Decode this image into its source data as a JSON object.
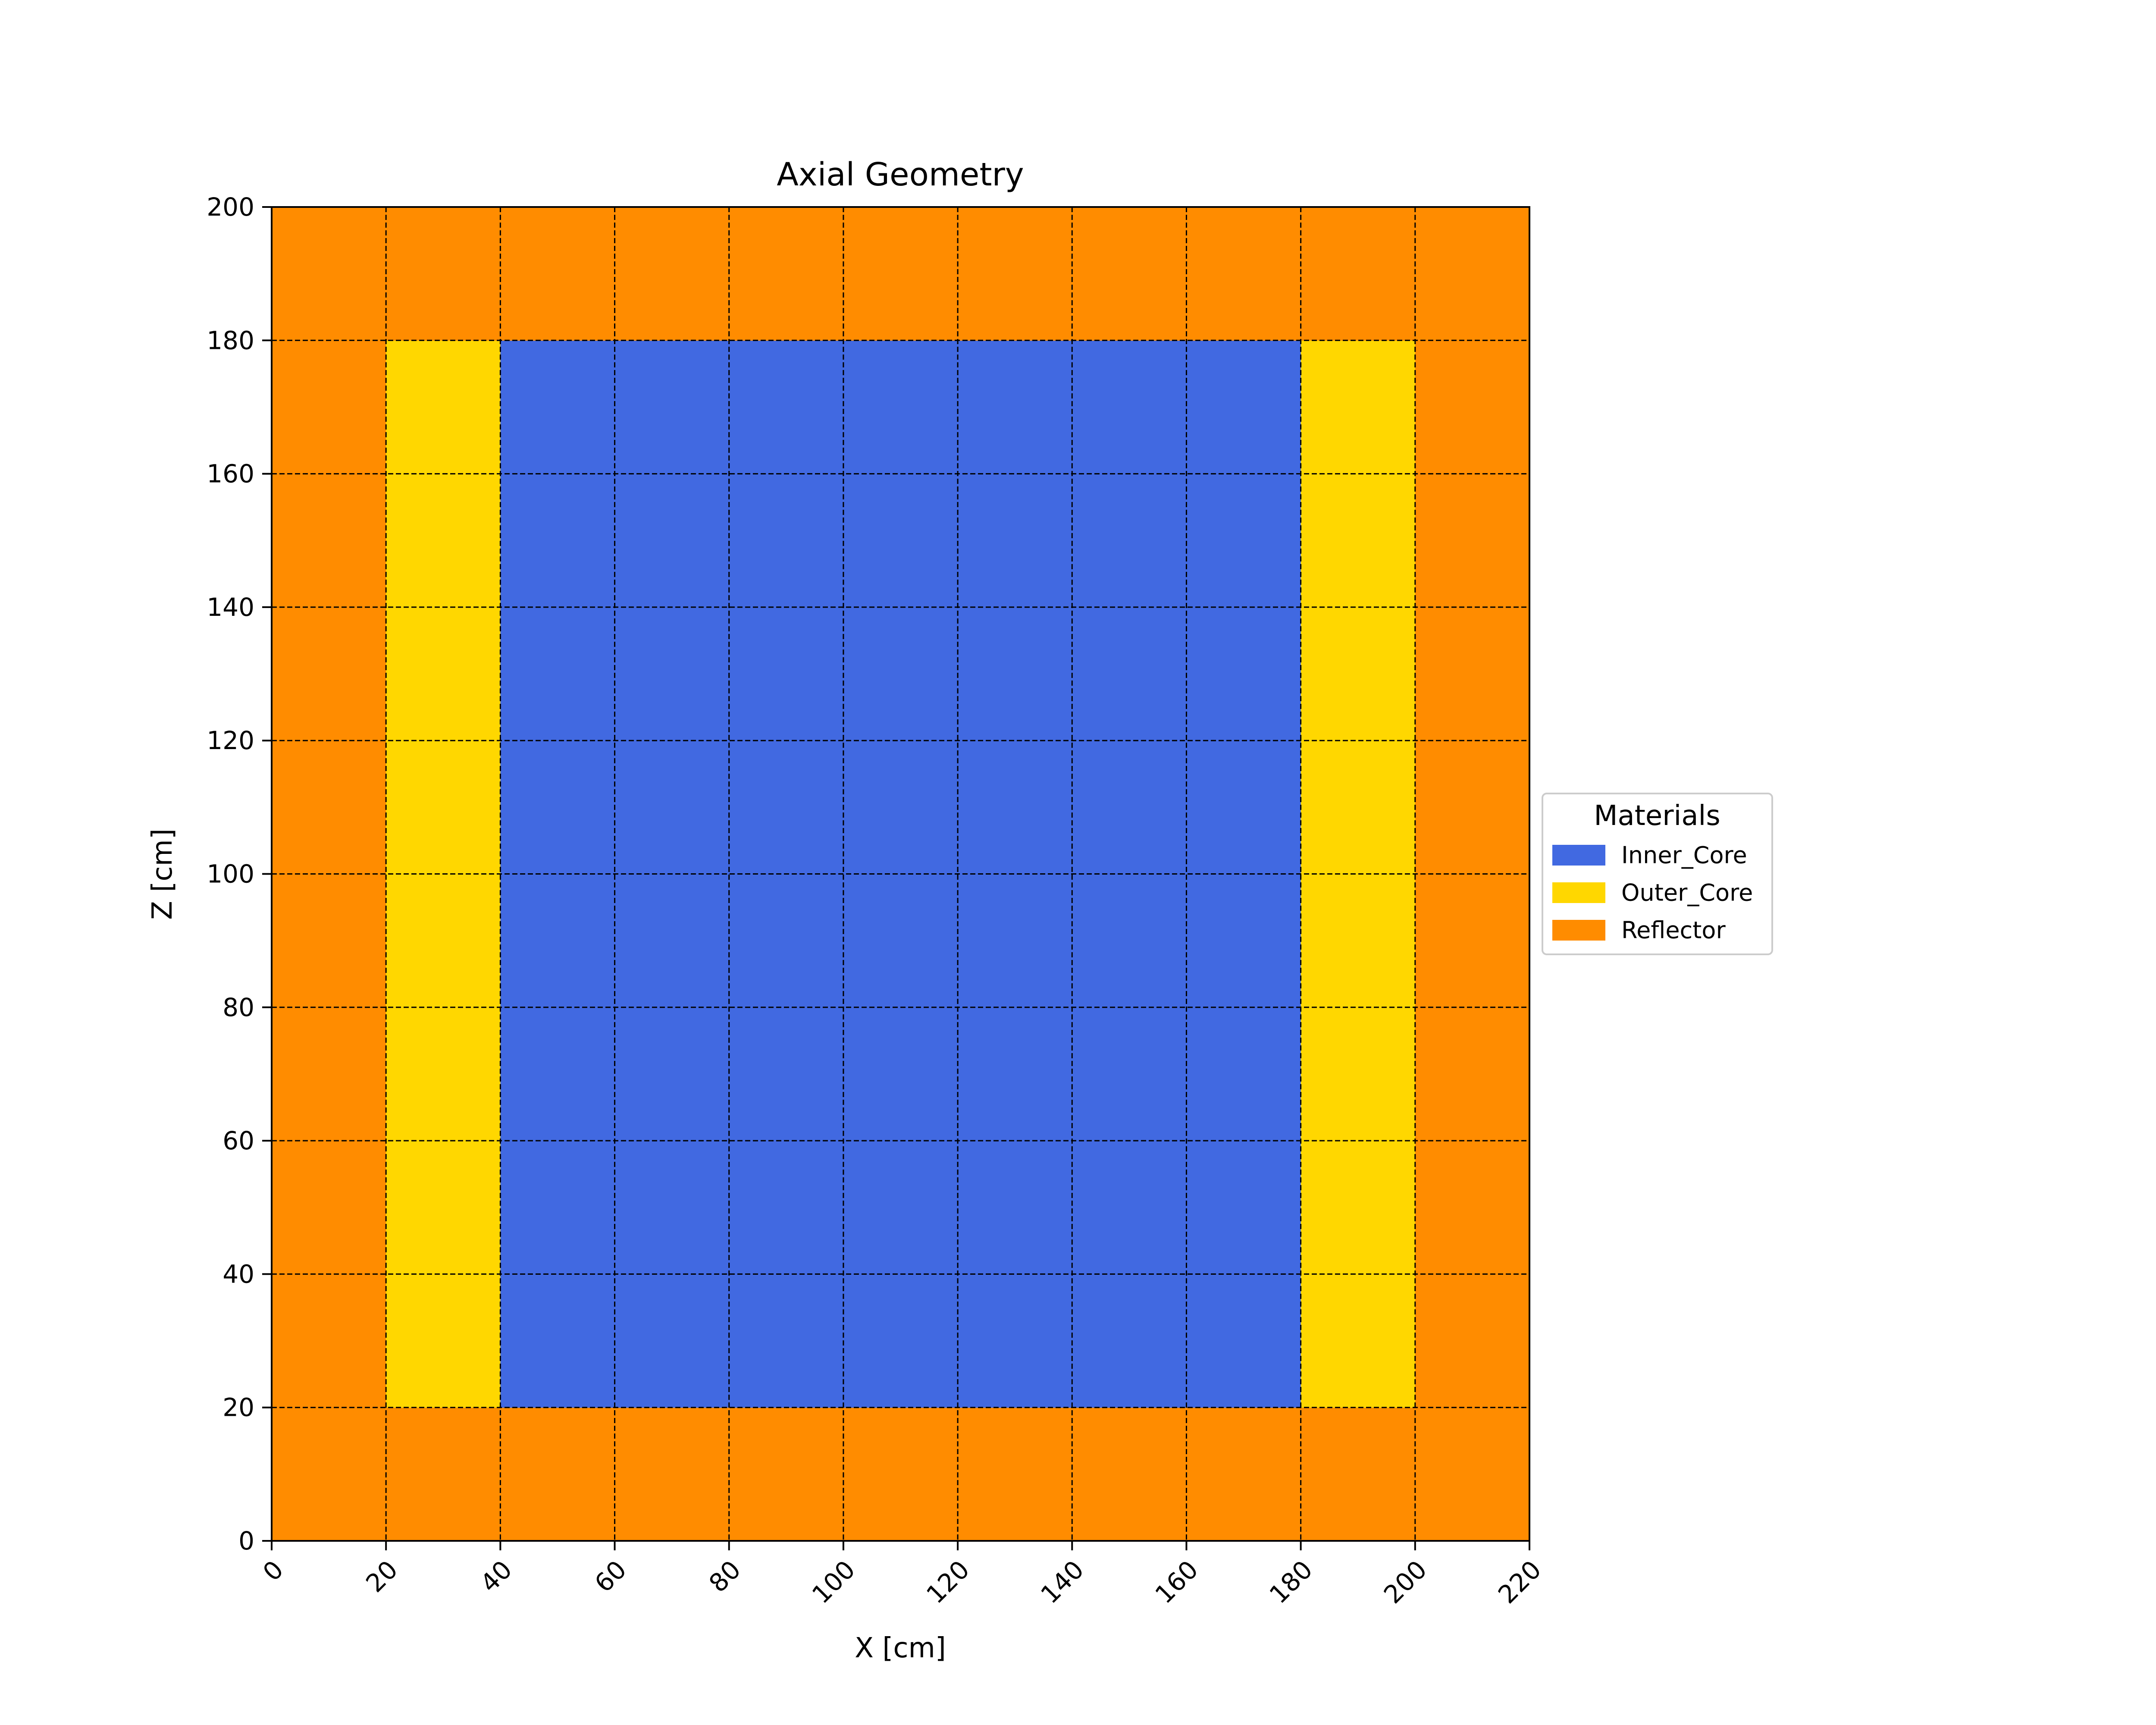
{
  "chart_data": {
    "type": "heatmap",
    "title": "Axial Geometry",
    "xlabel": "X [cm]",
    "ylabel": "Z [cm]",
    "xlim": [
      0,
      220
    ],
    "ylim": [
      0,
      200
    ],
    "x_edges": [
      0,
      20,
      40,
      60,
      80,
      100,
      120,
      140,
      160,
      180,
      200,
      220
    ],
    "y_edges": [
      0,
      20,
      40,
      60,
      80,
      100,
      120,
      140,
      160,
      180,
      200
    ],
    "x_ticks": [
      "0",
      "20",
      "40",
      "60",
      "80",
      "100",
      "120",
      "140",
      "160",
      "180",
      "200",
      "220"
    ],
    "y_ticks": [
      "0",
      "20",
      "40",
      "60",
      "80",
      "100",
      "120",
      "140",
      "160",
      "180",
      "200"
    ],
    "grid": true,
    "legend": {
      "title": "Materials",
      "placement": "center-right-outside",
      "entries": [
        {
          "name": "Inner_Core",
          "color": "#4169e1"
        },
        {
          "name": "Outer_Core",
          "color": "#ffd700"
        },
        {
          "name": "Reflector",
          "color": "#ff8c00"
        }
      ]
    },
    "cells_rows_bottom_to_top": [
      [
        "Reflector",
        "Reflector",
        "Reflector",
        "Reflector",
        "Reflector",
        "Reflector",
        "Reflector",
        "Reflector",
        "Reflector",
        "Reflector",
        "Reflector"
      ],
      [
        "Reflector",
        "Outer_Core",
        "Inner_Core",
        "Inner_Core",
        "Inner_Core",
        "Inner_Core",
        "Inner_Core",
        "Inner_Core",
        "Inner_Core",
        "Outer_Core",
        "Reflector"
      ],
      [
        "Reflector",
        "Outer_Core",
        "Inner_Core",
        "Inner_Core",
        "Inner_Core",
        "Inner_Core",
        "Inner_Core",
        "Inner_Core",
        "Inner_Core",
        "Outer_Core",
        "Reflector"
      ],
      [
        "Reflector",
        "Outer_Core",
        "Inner_Core",
        "Inner_Core",
        "Inner_Core",
        "Inner_Core",
        "Inner_Core",
        "Inner_Core",
        "Inner_Core",
        "Outer_Core",
        "Reflector"
      ],
      [
        "Reflector",
        "Outer_Core",
        "Inner_Core",
        "Inner_Core",
        "Inner_Core",
        "Inner_Core",
        "Inner_Core",
        "Inner_Core",
        "Inner_Core",
        "Outer_Core",
        "Reflector"
      ],
      [
        "Reflector",
        "Outer_Core",
        "Inner_Core",
        "Inner_Core",
        "Inner_Core",
        "Inner_Core",
        "Inner_Core",
        "Inner_Core",
        "Inner_Core",
        "Outer_Core",
        "Reflector"
      ],
      [
        "Reflector",
        "Outer_Core",
        "Inner_Core",
        "Inner_Core",
        "Inner_Core",
        "Inner_Core",
        "Inner_Core",
        "Inner_Core",
        "Inner_Core",
        "Outer_Core",
        "Reflector"
      ],
      [
        "Reflector",
        "Outer_Core",
        "Inner_Core",
        "Inner_Core",
        "Inner_Core",
        "Inner_Core",
        "Inner_Core",
        "Inner_Core",
        "Inner_Core",
        "Outer_Core",
        "Reflector"
      ],
      [
        "Reflector",
        "Outer_Core",
        "Inner_Core",
        "Inner_Core",
        "Inner_Core",
        "Inner_Core",
        "Inner_Core",
        "Inner_Core",
        "Inner_Core",
        "Outer_Core",
        "Reflector"
      ],
      [
        "Reflector",
        "Reflector",
        "Reflector",
        "Reflector",
        "Reflector",
        "Reflector",
        "Reflector",
        "Reflector",
        "Reflector",
        "Reflector",
        "Reflector"
      ]
    ]
  }
}
